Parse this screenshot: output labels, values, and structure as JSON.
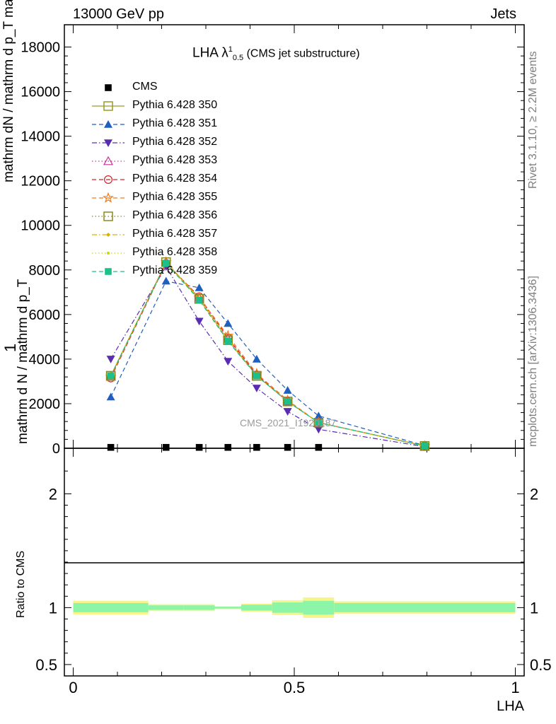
{
  "header": {
    "left": "13000 GeV pp",
    "right": "Jets"
  },
  "side_text": {
    "rivet": "Rivet 3.1.10, ≥ 2.2M events",
    "mcplots": "mcplots.cern.ch [arXiv:1306.3436]"
  },
  "title": {
    "main": "LHA λ",
    "sup": "1",
    "sub": "0.5",
    "suffix": " (CMS jet substructure)"
  },
  "watermark": "CMS_2021_I1920187",
  "ylabel": {
    "numerator": "mathrm d N / mathrm d p_T",
    "one": "1",
    "upper": "mathrm dN / mathrm d p_T mathrm d lambda"
  },
  "ratio_ylabel": "Ratio to CMS",
  "xlabel": "LHA",
  "chart_data": {
    "type": "line",
    "x": [
      0.085,
      0.21,
      0.285,
      0.35,
      0.415,
      0.485,
      0.555,
      0.795
    ],
    "ylim_main": [
      0,
      19000
    ],
    "yticks_main": [
      0,
      2000,
      4000,
      6000,
      8000,
      10000,
      12000,
      14000,
      16000,
      18000
    ],
    "ytick_labels_main": [
      "0",
      "2000",
      "4000",
      "6000",
      "8000",
      "10000",
      "12000",
      "14000",
      "16000",
      "18000"
    ],
    "xlim": [
      -0.02,
      1.02
    ],
    "xticks": [
      0,
      0.5,
      1
    ],
    "xtick_labels": [
      "0",
      "0.5",
      "1"
    ],
    "ratio_ylim": [
      0.4,
      2.4
    ],
    "ratio_yticks": [
      0.5,
      1,
      2
    ],
    "ratio_ytick_labels": [
      "0.5",
      "1",
      "2"
    ],
    "series": [
      {
        "name": "CMS",
        "color": "#000000",
        "marker": "square-filled",
        "dash": "none",
        "line": false,
        "values": [
          40,
          40,
          40,
          40,
          40,
          40,
          40,
          null
        ]
      },
      {
        "name": "Pythia 6.428 350",
        "color": "#9a9a2a",
        "marker": "square-open",
        "dash": "solid",
        "line": true,
        "values": [
          3250,
          8350,
          6700,
          4850,
          3250,
          2100,
          1150,
          100
        ]
      },
      {
        "name": "Pythia 6.428 351",
        "color": "#1f5fbf",
        "marker": "triangle-up-filled",
        "dash": "dashed",
        "line": true,
        "values": [
          2300,
          7500,
          7200,
          5600,
          4000,
          2600,
          1450,
          120
        ]
      },
      {
        "name": "Pythia 6.428 352",
        "color": "#5a2db0",
        "marker": "triangle-down-filled",
        "dash": "dashdot",
        "line": true,
        "values": [
          4000,
          8150,
          5700,
          3900,
          2700,
          1650,
          850,
          70
        ]
      },
      {
        "name": "Pythia 6.428 353",
        "color": "#c4309a",
        "marker": "triangle-up-open",
        "dash": "dotted",
        "line": true,
        "values": [
          3200,
          8350,
          6750,
          4900,
          3300,
          2100,
          1150,
          100
        ]
      },
      {
        "name": "Pythia 6.428 354",
        "color": "#d6202a",
        "marker": "circle-open",
        "dash": "dashed",
        "line": true,
        "values": [
          3150,
          8300,
          6800,
          4950,
          3300,
          2100,
          1150,
          100
        ]
      },
      {
        "name": "Pythia 6.428 355",
        "color": "#f07a1a",
        "marker": "star-open",
        "dash": "dashed",
        "line": true,
        "values": [
          3200,
          8350,
          6750,
          5050,
          3350,
          2150,
          1150,
          100
        ]
      },
      {
        "name": "Pythia 6.428 356",
        "color": "#8a8a20",
        "marker": "square-open",
        "dash": "dotted",
        "line": true,
        "values": [
          3250,
          8350,
          6700,
          4850,
          3250,
          2100,
          1150,
          100
        ]
      },
      {
        "name": "Pythia 6.428 357",
        "color": "#d4b40a",
        "marker": "diamond-small",
        "dash": "dashdot",
        "line": true,
        "values": [
          3250,
          8350,
          6700,
          4850,
          3250,
          2100,
          1150,
          100
        ]
      },
      {
        "name": "Pythia 6.428 358",
        "color": "#c8d60a",
        "marker": "dot-small",
        "dash": "dotted",
        "line": true,
        "values": [
          3250,
          8350,
          6700,
          4850,
          3250,
          2100,
          1150,
          100
        ]
      },
      {
        "name": "Pythia 6.428 359",
        "color": "#1ec08a",
        "marker": "square-filled",
        "dash": "dashed",
        "line": true,
        "values": [
          3250,
          8300,
          6650,
          4800,
          3250,
          2100,
          1150,
          100
        ]
      }
    ],
    "ratio_bands": {
      "bins": [
        0,
        0.17,
        0.25,
        0.32,
        0.38,
        0.45,
        0.52,
        0.59,
        1.0
      ],
      "outer_half_width": [
        0.06,
        0.03,
        0.03,
        0.012,
        0.035,
        0.065,
        0.09,
        0.055
      ],
      "inner_half_width": [
        0.04,
        0.02,
        0.02,
        0.008,
        0.025,
        0.045,
        0.06,
        0.04
      ],
      "outer_color": "#f5f58a",
      "inner_color": "#8cf5a8"
    }
  }
}
